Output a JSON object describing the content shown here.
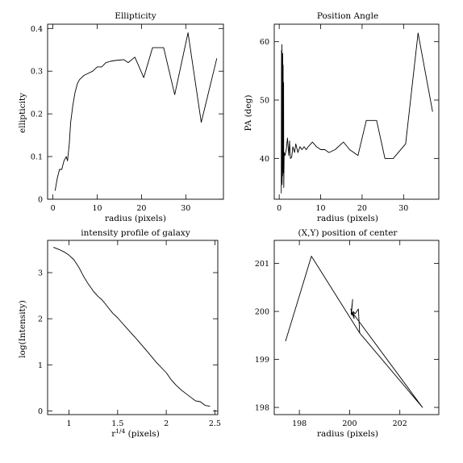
{
  "chart_data": [
    {
      "type": "line",
      "title": "Ellipticity",
      "xlabel": "radius (pixels)",
      "ylabel": "ellipticity",
      "xlim": [
        -1.2,
        38.5
      ],
      "ylim": [
        0,
        0.41
      ],
      "xticks": [
        0,
        10,
        20,
        30
      ],
      "yticks": [
        0,
        0.1,
        0.2,
        0.3,
        0.4
      ],
      "xtick_labels": [
        "0",
        "10",
        "20",
        "30"
      ],
      "ytick_labels": [
        "0",
        "0.1",
        "0.2",
        "0.3",
        "0.4"
      ],
      "x": [
        0.5,
        1.0,
        1.5,
        2.0,
        2.5,
        3.0,
        3.3,
        3.7,
        4.0,
        4.5,
        5.0,
        5.5,
        6.0,
        6.5,
        7.0,
        8.0,
        9.0,
        10.0,
        11.0,
        12.0,
        13.0,
        14.0,
        15.0,
        16.0,
        17.0,
        18.5,
        20.5,
        22.5,
        25.0,
        27.5,
        30.5,
        33.5,
        37.0
      ],
      "y": [
        0.02,
        0.05,
        0.07,
        0.07,
        0.09,
        0.1,
        0.09,
        0.13,
        0.18,
        0.22,
        0.25,
        0.27,
        0.28,
        0.285,
        0.29,
        0.295,
        0.3,
        0.31,
        0.31,
        0.32,
        0.323,
        0.325,
        0.326,
        0.327,
        0.32,
        0.333,
        0.285,
        0.355,
        0.355,
        0.245,
        0.39,
        0.18,
        0.33
      ]
    },
    {
      "type": "line",
      "title": "Position Angle",
      "xlabel": "radius (pixels)",
      "ylabel": "PA (deg)",
      "xlim": [
        -1.2,
        38.5
      ],
      "ylim": [
        33,
        63
      ],
      "xticks": [
        0,
        10,
        20,
        30
      ],
      "yticks": [
        40,
        50,
        60
      ],
      "xtick_labels": [
        "0",
        "10",
        "20",
        "30"
      ],
      "ytick_labels": [
        "40",
        "50",
        "60"
      ],
      "x": [
        0.5,
        0.55,
        0.6,
        0.65,
        0.7,
        0.75,
        0.8,
        0.85,
        0.9,
        0.95,
        1.0,
        1.05,
        1.1,
        1.2,
        1.4,
        1.7,
        2.0,
        2.3,
        2.5,
        2.7,
        3.0,
        3.3,
        3.7,
        4.0,
        4.5,
        5.0,
        5.5,
        6.0,
        6.5,
        7.0,
        8.0,
        9.0,
        10.0,
        11.0,
        12.0,
        13.5,
        15.5,
        17.0,
        19.0,
        21.0,
        23.5,
        25.5,
        27.5,
        30.5,
        33.5,
        37.0
      ],
      "y": [
        34.0,
        58.5,
        36.0,
        59.5,
        35.5,
        57.0,
        37.0,
        58.0,
        38.0,
        56.0,
        37.5,
        53.0,
        35.0,
        41.0,
        40.5,
        41.5,
        43.5,
        40.5,
        43.0,
        40.0,
        40.2,
        42.0,
        41.0,
        42.5,
        41.0,
        42.0,
        41.5,
        42.0,
        41.5,
        42.0,
        42.8,
        42.0,
        41.5,
        41.5,
        41.0,
        41.5,
        42.8,
        41.5,
        40.5,
        46.5,
        46.5,
        40.0,
        40.0,
        42.5,
        61.5,
        48.0
      ]
    },
    {
      "type": "line",
      "title": "intensity profile of galaxy",
      "xlabel": "r^{1/4} (pixels)",
      "ylabel": "log(Intensity)",
      "xlim": [
        0.78,
        2.53
      ],
      "ylim": [
        -0.08,
        3.7
      ],
      "xticks": [
        1,
        1.5,
        2,
        2.5
      ],
      "yticks": [
        0,
        1,
        2,
        3
      ],
      "xtick_labels": [
        "1",
        "1.5",
        "2",
        "2.5"
      ],
      "ytick_labels": [
        "0",
        "1",
        "2",
        "3"
      ],
      "x": [
        0.84,
        0.9,
        0.95,
        1.0,
        1.05,
        1.1,
        1.15,
        1.2,
        1.25,
        1.3,
        1.33,
        1.36,
        1.4,
        1.45,
        1.5,
        1.6,
        1.7,
        1.8,
        1.9,
        2.0,
        2.05,
        2.1,
        2.15,
        2.2,
        2.25,
        2.3,
        2.35,
        2.4,
        2.45
      ],
      "y": [
        3.55,
        3.5,
        3.45,
        3.38,
        3.28,
        3.12,
        2.92,
        2.75,
        2.6,
        2.48,
        2.43,
        2.36,
        2.25,
        2.12,
        2.02,
        1.78,
        1.55,
        1.3,
        1.05,
        0.83,
        0.68,
        0.56,
        0.46,
        0.38,
        0.3,
        0.22,
        0.2,
        0.12,
        0.1
      ]
    },
    {
      "type": "line",
      "title": "(X,Y) position of center",
      "xlabel": "radius (pixels)",
      "ylabel": "",
      "xlim": [
        197.0,
        203.55
      ],
      "ylim": [
        197.85,
        201.48
      ],
      "xticks": [
        198,
        200,
        202
      ],
      "yticks": [
        198,
        199,
        200,
        201
      ],
      "xtick_labels": [
        "198",
        "200",
        "202"
      ],
      "ytick_labels": [
        "198",
        "199",
        "200",
        "201"
      ],
      "x": [
        197.45,
        198.48,
        200.4,
        202.9,
        200.08,
        200.12,
        200.06,
        200.1,
        200.05,
        200.18,
        200.15,
        200.22,
        200.35,
        200.4
      ],
      "y": [
        199.38,
        201.15,
        199.55,
        198.0,
        200.0,
        200.25,
        199.95,
        199.92,
        200.05,
        199.85,
        200.0,
        199.95,
        200.05,
        199.55
      ]
    }
  ]
}
